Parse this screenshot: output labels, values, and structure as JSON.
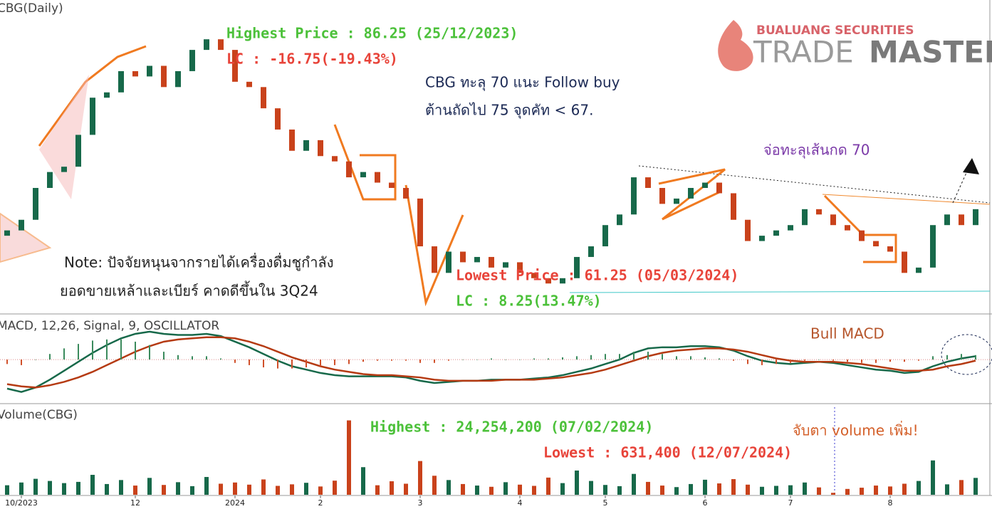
{
  "header": {
    "logo_top": "BUALUANG SECURITIES",
    "logo_trade": "TRADE",
    "logo_master": "MASTER"
  },
  "chart_data": [
    {
      "type": "candlestick",
      "title": "CBG(Daily)",
      "up_color": "#17694a",
      "down_color": "#c9421b",
      "ylim": [
        59.2,
        88.7
      ],
      "open": [
        66.5,
        67.0,
        68.0,
        71.0,
        72.5,
        73.0,
        76.0,
        79.5,
        80.0,
        82.0,
        81.5,
        82.5,
        80.5,
        82.0,
        84.0,
        85.0,
        84.0,
        81.0,
        80.5,
        78.5,
        76.5,
        74.5,
        75.5,
        74.0,
        73.5,
        72.0,
        72.5,
        71.5,
        71.0,
        70.0,
        65.5,
        63.0,
        65.0,
        64.0,
        64.5,
        63.5,
        64.0,
        63.0,
        62.5,
        62.0,
        62.5,
        64.5,
        65.5,
        67.5,
        68.5,
        72.0,
        71.0,
        69.5,
        70.0,
        71.0,
        71.5,
        70.5,
        68.0,
        66.0,
        66.5,
        67.0,
        67.5,
        69.0,
        68.5,
        67.5,
        67.0,
        66.0,
        65.5,
        65.0,
        63.0,
        63.5,
        67.5,
        68.5,
        67.5
      ],
      "close": [
        67.0,
        68.0,
        71.0,
        72.5,
        73.0,
        76.0,
        79.5,
        80.0,
        82.0,
        81.5,
        82.5,
        80.5,
        82.0,
        84.0,
        85.0,
        84.0,
        81.0,
        80.5,
        78.5,
        76.5,
        74.5,
        75.5,
        74.0,
        73.5,
        72.0,
        72.5,
        71.5,
        71.0,
        70.0,
        65.5,
        63.0,
        65.0,
        64.0,
        64.5,
        63.5,
        64.0,
        63.0,
        62.5,
        62.0,
        62.5,
        64.5,
        65.5,
        67.5,
        68.5,
        72.0,
        71.0,
        69.5,
        70.0,
        71.0,
        71.5,
        70.5,
        68.0,
        66.0,
        66.5,
        67.0,
        67.5,
        69.0,
        68.5,
        67.5,
        67.0,
        66.0,
        65.5,
        65.0,
        63.0,
        63.5,
        67.5,
        68.5,
        67.5,
        69.0
      ],
      "annotations": [
        {
          "text": "Highest Price : 86.25 (25/12/2023)",
          "color": "#4cc13a"
        },
        {
          "text": "LC : -16.75(-19.43%)",
          "color": "#e8443a"
        },
        {
          "text": "CBG ทะลุ 70 แนะ Follow buy",
          "color": "#1c2a55"
        },
        {
          "text": "ต้านถัดไป 75 จุดคัท < 67.",
          "color": "#1c2a55"
        },
        {
          "text": "จ่อทะลุเส้นกด 70",
          "color": "#7b3aa8"
        },
        {
          "text": "Note: ปัจจัยหนุนจากรายได้เครื่องดื่มชูกำลัง",
          "color": "#222222"
        },
        {
          "text": "ยอดขายเหล้าและเบียร์ คาดดีขึ้นใน 3Q24",
          "color": "#222222"
        },
        {
          "text": "Lowest Price : 61.25 (05/03/2024)",
          "color": "#e8443a"
        },
        {
          "text": "LC : 8.25(13.47%)",
          "color": "#4cc13a"
        }
      ]
    },
    {
      "type": "line",
      "title": "MACD, 12,26, Signal, 9, OSCILLATOR",
      "ylim": [
        -3.5,
        3
      ],
      "series": [
        {
          "color": "#17694a",
          "values": [
            -2.6,
            -2.9,
            -2.5,
            -1.8,
            -1.0,
            -0.2,
            0.6,
            1.3,
            1.9,
            2.3,
            2.5,
            2.3,
            2.2,
            2.2,
            2.3,
            2.1,
            1.6,
            1.1,
            0.5,
            -0.1,
            -0.6,
            -0.9,
            -1.2,
            -1.4,
            -1.5,
            -1.5,
            -1.5,
            -1.5,
            -1.6,
            -1.9,
            -2.1,
            -2.0,
            -1.9,
            -1.9,
            -1.8,
            -1.8,
            -1.8,
            -1.7,
            -1.6,
            -1.4,
            -1.1,
            -0.8,
            -0.4,
            0.0,
            0.6,
            1.0,
            1.1,
            1.1,
            1.2,
            1.2,
            1.1,
            0.8,
            0.3,
            -0.1,
            -0.3,
            -0.4,
            -0.3,
            -0.2,
            -0.3,
            -0.5,
            -0.7,
            -0.9,
            -1.0,
            -1.2,
            -1.1,
            -0.6,
            -0.2,
            0.1,
            0.3
          ]
        },
        {
          "color": "#b53a12",
          "values": [
            -2.2,
            -2.4,
            -2.5,
            -2.3,
            -2.0,
            -1.6,
            -1.1,
            -0.5,
            0.1,
            0.7,
            1.2,
            1.6,
            1.8,
            1.9,
            2.0,
            2.0,
            1.9,
            1.6,
            1.2,
            0.7,
            0.2,
            -0.2,
            -0.6,
            -0.9,
            -1.1,
            -1.3,
            -1.4,
            -1.4,
            -1.5,
            -1.6,
            -1.8,
            -1.9,
            -1.9,
            -1.9,
            -1.9,
            -1.8,
            -1.8,
            -1.8,
            -1.7,
            -1.6,
            -1.4,
            -1.2,
            -0.9,
            -0.5,
            -0.1,
            0.3,
            0.6,
            0.8,
            0.9,
            1.0,
            1.0,
            0.9,
            0.7,
            0.4,
            0.1,
            -0.1,
            -0.2,
            -0.2,
            -0.2,
            -0.3,
            -0.4,
            -0.6,
            -0.8,
            -1.0,
            -1.0,
            -0.9,
            -0.6,
            -0.4,
            -0.1
          ]
        },
        {
          "type": "bar",
          "up_color": "#3a8a5c",
          "down_color": "#d0502a",
          "values": [
            -0.4,
            -0.5,
            0,
            0.5,
            1.0,
            1.4,
            1.7,
            1.8,
            1.8,
            1.6,
            1.3,
            0.7,
            0.4,
            0.3,
            0.3,
            0.1,
            -0.3,
            -0.5,
            -0.7,
            -0.8,
            -0.8,
            -0.7,
            -0.6,
            -0.5,
            -0.4,
            -0.2,
            -0.1,
            -0.1,
            -0.1,
            -0.3,
            -0.3,
            -0.1,
            0,
            0,
            0.1,
            0,
            0,
            0.1,
            0.1,
            0.2,
            0.3,
            0.4,
            0.5,
            0.5,
            0.7,
            0.7,
            0.5,
            0.3,
            0.3,
            0.2,
            0.1,
            -0.1,
            -0.4,
            -0.5,
            -0.4,
            -0.3,
            -0.1,
            0,
            -0.1,
            -0.2,
            -0.3,
            -0.3,
            -0.2,
            -0.2,
            -0.1,
            0.3,
            0.4,
            0.5,
            0.4
          ]
        }
      ],
      "annotations": [
        {
          "text": "Bull MACD",
          "color": "#b5542a"
        }
      ]
    },
    {
      "type": "bar",
      "title": "Volume(CBG)",
      "ylim": [
        0,
        26000000
      ],
      "categories": [
        null,
        "10/2023",
        null,
        null,
        null,
        null,
        null,
        null,
        null,
        "12",
        null,
        null,
        null,
        null,
        null,
        null,
        "2024",
        null,
        null,
        null,
        null,
        null,
        "2",
        null,
        null,
        null,
        null,
        null,
        null,
        "3",
        null,
        null,
        null,
        null,
        null,
        null,
        "4",
        null,
        null,
        null,
        null,
        null,
        "5",
        null,
        null,
        null,
        null,
        null,
        null,
        "6",
        null,
        null,
        null,
        null,
        null,
        "7",
        null,
        null,
        null,
        null,
        null,
        null,
        "8",
        null,
        null,
        null,
        null,
        null,
        null
      ],
      "values": [
        3100000,
        4000000,
        5200000,
        4500000,
        3800000,
        4200000,
        6500000,
        3500000,
        4800000,
        3000000,
        5500000,
        3200000,
        4100000,
        2800000,
        5800000,
        3600000,
        4000000,
        3300000,
        5000000,
        2900000,
        3400000,
        3900000,
        2700000,
        4600000,
        24254200,
        9000000,
        3100000,
        4400000,
        3600000,
        11000000,
        6200000,
        4800000,
        3500000,
        3000000,
        2600000,
        4100000,
        3300000,
        2900000,
        5600000,
        3800000,
        7900000,
        4500000,
        3200000,
        2800000,
        6800000,
        4200000,
        3000000,
        2500000,
        3500000,
        4900000,
        3700000,
        5100000,
        3300000,
        2600000,
        2900000,
        3100000,
        4000000,
        2400000,
        631400,
        1900000,
        2300000,
        3000000,
        2700000,
        3600000,
        4500000,
        11200000,
        3400000,
        4800000,
        5500000
      ],
      "annotations": [
        {
          "text": "Highest : 24,254,200 (07/02/2024)",
          "color": "#4cc13a"
        },
        {
          "text": "Lowest : 631,400 (12/07/2024)",
          "color": "#e8443a"
        },
        {
          "text": "จับตา volume เพิ่ม!",
          "color": "#d4602a"
        }
      ]
    }
  ]
}
